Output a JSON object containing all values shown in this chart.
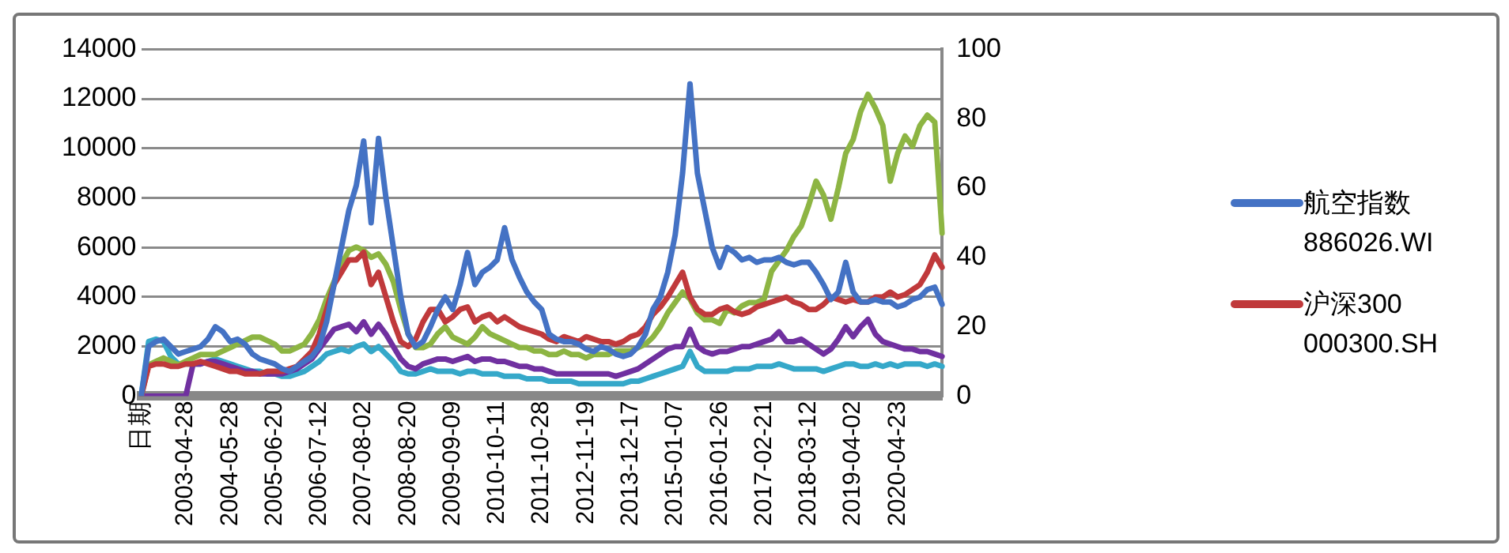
{
  "chart_data": {
    "type": "line",
    "categories": [
      "日期",
      null,
      null,
      null,
      null,
      null,
      "2003-04-28",
      null,
      null,
      null,
      null,
      null,
      "2004-05-28",
      null,
      null,
      null,
      null,
      null,
      "2005-06-20",
      null,
      null,
      null,
      null,
      null,
      "2006-07-12",
      null,
      null,
      null,
      null,
      null,
      "2007-08-02",
      null,
      null,
      null,
      null,
      null,
      "2008-08-20",
      null,
      null,
      null,
      null,
      null,
      "2009-09-09",
      null,
      null,
      null,
      null,
      null,
      "2010-10-11",
      null,
      null,
      null,
      null,
      null,
      "2011-10-28",
      null,
      null,
      null,
      null,
      null,
      "2012-11-19",
      null,
      null,
      null,
      null,
      null,
      "2013-12-17",
      null,
      null,
      null,
      null,
      null,
      "2015-01-07",
      null,
      null,
      null,
      null,
      null,
      "2016-01-26",
      null,
      null,
      null,
      null,
      null,
      "2017-02-21",
      null,
      null,
      null,
      null,
      null,
      "2018-03-12",
      null,
      null,
      null,
      null,
      null,
      "2019-04-02",
      null,
      null,
      null,
      null,
      null,
      "2020-04-23",
      null,
      null,
      null,
      null,
      null,
      null
    ],
    "series": [
      {
        "name": "航空指数 886026.WI",
        "color": "#4472c4",
        "values": [
          0,
          2000,
          2200,
          2300,
          2000,
          1700,
          1800,
          1900,
          2000,
          2300,
          2800,
          2600,
          2200,
          2300,
          2100,
          1700,
          1500,
          1400,
          1300,
          1100,
          1000,
          1200,
          1400,
          1600,
          2000,
          3000,
          4500,
          6000,
          7500,
          8500,
          10300,
          7000,
          10400,
          8000,
          6000,
          4000,
          2500,
          2000,
          2200,
          2800,
          3500,
          4000,
          3500,
          4500,
          5800,
          4500,
          5000,
          5200,
          5500,
          6800,
          5500,
          4800,
          4200,
          3800,
          3500,
          2500,
          2300,
          2200,
          2200,
          2100,
          1900,
          1800,
          2000,
          1900,
          1700,
          1600,
          1700,
          2000,
          2500,
          3500,
          4000,
          5000,
          6500,
          9000,
          12600,
          9000,
          7500,
          6000,
          5200,
          6000,
          5800,
          5500,
          5600,
          5400,
          5500,
          5500,
          5600,
          5400,
          5300,
          5400,
          5400,
          5000,
          4500,
          3900,
          4200,
          5400,
          4200,
          3800,
          3800,
          3900,
          3800,
          3800,
          3600,
          3700,
          3900,
          4000,
          4300,
          4400,
          3700
        ]
      },
      {
        "name": "沪深300 000300.SH",
        "color": "#c0393b",
        "values": [
          0,
          1200,
          1300,
          1300,
          1200,
          1200,
          1300,
          1300,
          1400,
          1300,
          1200,
          1100,
          1000,
          1000,
          900,
          900,
          900,
          1000,
          1000,
          1000,
          1100,
          1200,
          1500,
          1800,
          2500,
          3500,
          4500,
          5000,
          5500,
          5500,
          5800,
          4500,
          5000,
          4000,
          3000,
          2200,
          2000,
          2300,
          3000,
          3500,
          3500,
          3000,
          3200,
          3500,
          3600,
          3000,
          3200,
          3300,
          3000,
          3200,
          3000,
          2800,
          2700,
          2600,
          2500,
          2300,
          2200,
          2400,
          2300,
          2200,
          2400,
          2300,
          2200,
          2200,
          2100,
          2200,
          2400,
          2500,
          2800,
          3300,
          3600,
          4000,
          4500,
          5000,
          4000,
          3500,
          3300,
          3300,
          3500,
          3600,
          3400,
          3300,
          3400,
          3600,
          3700,
          3800,
          3900,
          4000,
          3800,
          3700,
          3500,
          3500,
          3700,
          4000,
          3900,
          3800,
          3900,
          3800,
          3800,
          4000,
          4000,
          4200,
          4000,
          4100,
          4300,
          4500,
          5000,
          5700,
          5200
        ]
      },
      {
        "color": "#8db543",
        "axis": "y2",
        "values": [
          0,
          9,
          10,
          11,
          10,
          9,
          10,
          11,
          12,
          12,
          12,
          13,
          14,
          15,
          16,
          17,
          17,
          16,
          15,
          13,
          13,
          14,
          15,
          18,
          22,
          28,
          33,
          38,
          42,
          43,
          42,
          40,
          41,
          38,
          33,
          25,
          18,
          14,
          14,
          15,
          18,
          20,
          17,
          16,
          15,
          17,
          20,
          18,
          17,
          16,
          15,
          14,
          14,
          13,
          13,
          12,
          12,
          13,
          12,
          12,
          11,
          12,
          12,
          12,
          13,
          13,
          13,
          14,
          15,
          17,
          20,
          24,
          27,
          30,
          28,
          24,
          22,
          22,
          21,
          25,
          24,
          26,
          27,
          27,
          28,
          36,
          39,
          42,
          46,
          49,
          55,
          62,
          58,
          51,
          60,
          70,
          74,
          82,
          87,
          83,
          78,
          62,
          70,
          75,
          72,
          78,
          81,
          79,
          47
        ]
      },
      {
        "color": "#7030a0",
        "values": [
          0,
          0,
          0,
          0,
          0,
          0,
          0,
          1300,
          1300,
          1400,
          1400,
          1300,
          1200,
          1100,
          1000,
          1000,
          900,
          900,
          900,
          900,
          1000,
          1100,
          1300,
          1500,
          1900,
          2300,
          2700,
          2800,
          2900,
          2600,
          3000,
          2500,
          2900,
          2500,
          2000,
          1500,
          1200,
          1100,
          1300,
          1400,
          1500,
          1500,
          1400,
          1500,
          1600,
          1400,
          1500,
          1500,
          1400,
          1400,
          1300,
          1200,
          1200,
          1100,
          1100,
          1000,
          900,
          900,
          900,
          900,
          900,
          900,
          900,
          900,
          800,
          900,
          1000,
          1100,
          1300,
          1500,
          1700,
          1900,
          2000,
          2000,
          2700,
          2000,
          1800,
          1700,
          1800,
          1800,
          1900,
          2000,
          2000,
          2100,
          2200,
          2300,
          2600,
          2200,
          2200,
          2300,
          2100,
          1900,
          1700,
          1900,
          2300,
          2800,
          2400,
          2800,
          3100,
          2500,
          2200,
          2100,
          2000,
          1900,
          1900,
          1800,
          1800,
          1700,
          1600
        ]
      },
      {
        "color": "#35a8c9",
        "values": [
          0,
          2200,
          2300,
          2200,
          1600,
          1300,
          1300,
          1300,
          1300,
          1400,
          1500,
          1400,
          1300,
          1200,
          1100,
          1000,
          1000,
          900,
          900,
          800,
          800,
          900,
          1000,
          1200,
          1400,
          1700,
          1800,
          1900,
          1800,
          2000,
          2100,
          1800,
          2000,
          1700,
          1400,
          1000,
          900,
          900,
          1000,
          1100,
          1000,
          1000,
          1000,
          900,
          1000,
          1000,
          900,
          900,
          900,
          800,
          800,
          800,
          700,
          700,
          700,
          600,
          600,
          600,
          600,
          500,
          500,
          500,
          500,
          500,
          500,
          500,
          600,
          600,
          700,
          800,
          900,
          1000,
          1100,
          1200,
          1800,
          1200,
          1000,
          1000,
          1000,
          1000,
          1100,
          1100,
          1100,
          1200,
          1200,
          1200,
          1300,
          1200,
          1100,
          1100,
          1100,
          1100,
          1000,
          1100,
          1200,
          1300,
          1300,
          1200,
          1200,
          1300,
          1200,
          1300,
          1200,
          1300,
          1300,
          1300,
          1200,
          1300,
          1200
        ]
      }
    ],
    "ylim": [
      0,
      14000
    ],
    "yticks": [
      0,
      2000,
      4000,
      6000,
      8000,
      10000,
      12000,
      14000
    ],
    "y2lim": [
      0,
      100
    ],
    "y2ticks": [
      0,
      20,
      40,
      60,
      80,
      100
    ],
    "grid": "y",
    "legend": "right",
    "marker": "none",
    "line_style": "solid"
  }
}
